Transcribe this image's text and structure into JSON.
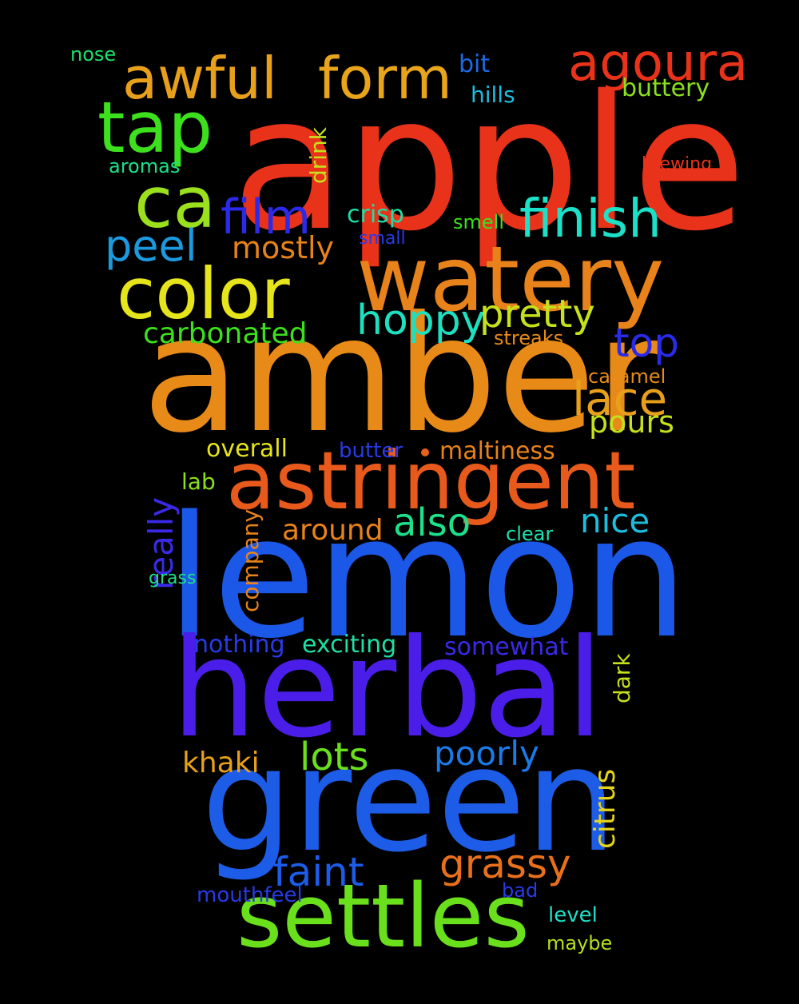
{
  "background": "#000000",
  "words": [
    {
      "text": "apple",
      "color": "#e8321a"
    },
    {
      "text": "amber",
      "color": "#e88a18"
    },
    {
      "text": "lemon",
      "color": "#1c58e8"
    },
    {
      "text": "herbal",
      "color": "#4a1ee8"
    },
    {
      "text": "green",
      "color": "#1c5ce6"
    },
    {
      "text": "watery",
      "color": "#e8821a"
    },
    {
      "text": "astringent",
      "color": "#e85a1c"
    },
    {
      "text": "settles",
      "color": "#6ae01c"
    },
    {
      "text": "color",
      "color": "#e6e41a"
    },
    {
      "text": "tap",
      "color": "#3de01c"
    },
    {
      "text": "awful",
      "color": "#e8a01a"
    },
    {
      "text": "form",
      "color": "#e8a41a"
    },
    {
      "text": "agoura",
      "color": "#e8321a"
    },
    {
      "text": "ca",
      "color": "#9be01c"
    },
    {
      "text": "finish",
      "color": "#1ce0c8"
    },
    {
      "text": "film",
      "color": "#2a2ae8"
    },
    {
      "text": "peel",
      "color": "#1c9ae0"
    },
    {
      "text": "mostly",
      "color": "#e8821a"
    },
    {
      "text": "crisp",
      "color": "#1ce0a6"
    },
    {
      "text": "hoppy",
      "color": "#1ce0c0"
    },
    {
      "text": "pretty",
      "color": "#c6e01c"
    },
    {
      "text": "carbonated",
      "color": "#3de01c"
    },
    {
      "text": "top",
      "color": "#2a2ae8"
    },
    {
      "text": "lace",
      "color": "#e8a01a"
    },
    {
      "text": "pours",
      "color": "#c6e01c"
    },
    {
      "text": "caramel",
      "color": "#e88a18"
    },
    {
      "text": "streaks",
      "color": "#e88a18"
    },
    {
      "text": "overall",
      "color": "#e6e41a"
    },
    {
      "text": "butter",
      "color": "#2a3ae8"
    },
    {
      "text": "maltiness",
      "color": "#e8821a"
    },
    {
      "text": "really",
      "color": "#3a2ae8"
    },
    {
      "text": "lab",
      "color": "#8ae01c"
    },
    {
      "text": "around",
      "color": "#e8821a"
    },
    {
      "text": "also",
      "color": "#1ce08a"
    },
    {
      "text": "nice",
      "color": "#1cbee0"
    },
    {
      "text": "clear",
      "color": "#1ce0b0"
    },
    {
      "text": "company",
      "color": "#e8821a"
    },
    {
      "text": "grass",
      "color": "#1ce08a"
    },
    {
      "text": "nothing",
      "color": "#2a3ae8"
    },
    {
      "text": "exciting",
      "color": "#1ce0a6"
    },
    {
      "text": "somewhat",
      "color": "#3a2ae8"
    },
    {
      "text": "dark",
      "color": "#c6e01c"
    },
    {
      "text": "khaki",
      "color": "#e8a01a"
    },
    {
      "text": "lots",
      "color": "#6ae01c"
    },
    {
      "text": "poorly",
      "color": "#1c7ae8"
    },
    {
      "text": "citrus",
      "color": "#e6d41a"
    },
    {
      "text": "faint",
      "color": "#1c5ce8"
    },
    {
      "text": "grassy",
      "color": "#e8701a"
    },
    {
      "text": "mouthfeel",
      "color": "#2a3ae8"
    },
    {
      "text": "bad",
      "color": "#2a3ae8"
    },
    {
      "text": "level",
      "color": "#1ce0c8"
    },
    {
      "text": "maybe",
      "color": "#b6e01c"
    },
    {
      "text": "nose",
      "color": "#1ce06a"
    },
    {
      "text": "bit",
      "color": "#1c6ae8"
    },
    {
      "text": "hills",
      "color": "#1cbee0"
    },
    {
      "text": "buttery",
      "color": "#8ae01c"
    },
    {
      "text": "aromas",
      "color": "#1ce08a"
    },
    {
      "text": "drink",
      "color": "#c6e01c"
    },
    {
      "text": "brewing",
      "color": "#e8321a"
    },
    {
      "text": "small",
      "color": "#2a3ae8"
    },
    {
      "text": "smell",
      "color": "#3de01c"
    }
  ]
}
